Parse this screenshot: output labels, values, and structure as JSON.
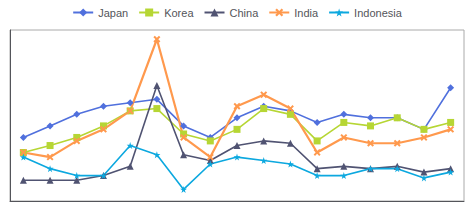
{
  "chart_data": {
    "type": "line",
    "x": [
      1,
      2,
      3,
      4,
      5,
      6,
      7,
      8,
      9,
      10,
      11,
      12,
      13,
      14,
      15,
      16,
      17
    ],
    "series": [
      {
        "name": "Japan",
        "values": [
          55,
          65,
          75,
          82,
          85,
          88,
          65,
          55,
          72,
          82,
          78,
          68,
          75,
          72,
          72,
          62,
          98
        ],
        "marker": "diamond",
        "line_style": "solid"
      },
      {
        "name": "Korea",
        "values": [
          42,
          48,
          55,
          65,
          78,
          80,
          58,
          52,
          62,
          80,
          75,
          52,
          68,
          65,
          72,
          62,
          68
        ],
        "marker": "square",
        "line_style": "solid"
      },
      {
        "name": "China",
        "values": [
          18,
          18,
          18,
          22,
          30,
          100,
          40,
          35,
          48,
          52,
          50,
          28,
          30,
          28,
          30,
          25,
          28
        ],
        "marker": "triangle",
        "line_style": "solid"
      },
      {
        "name": "India",
        "values": [
          42,
          38,
          52,
          62,
          78,
          140,
          55,
          38,
          82,
          92,
          80,
          42,
          55,
          50,
          50,
          55,
          62
        ],
        "marker": "x",
        "line_style": "solid"
      },
      {
        "name": "Indonesia",
        "values": [
          38,
          28,
          22,
          22,
          48,
          40,
          10,
          32,
          38,
          35,
          32,
          22,
          22,
          28,
          28,
          20,
          25
        ],
        "marker": "star",
        "line_style": "solid"
      }
    ],
    "xlim": [
      0.5,
      17.5
    ],
    "ylim": [
      0,
      148
    ],
    "tick_labels": false,
    "grid": false,
    "legend": "top"
  }
}
